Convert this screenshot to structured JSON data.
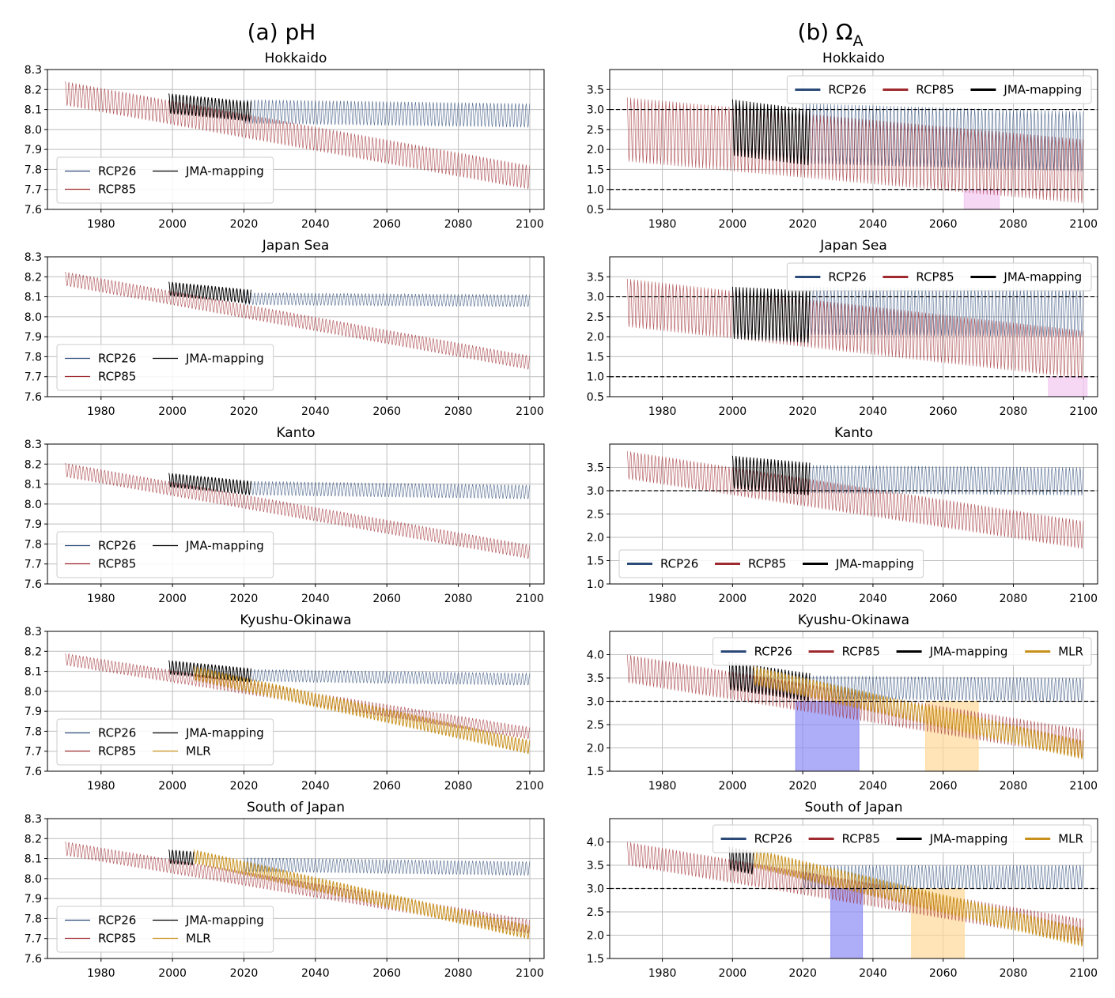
{
  "figure": {
    "col_a_title": "(a) pH",
    "col_b_title": "(b) Ω",
    "col_b_subscript": "A"
  },
  "colors": {
    "RCP26": "#2b4a78",
    "RCP85": "#9e2a2f",
    "JMA-mapping": "#000000",
    "MLR": "#c8901c",
    "pink_span": "#f2c6f0",
    "blue_span": "#8c8cf5",
    "orange_span": "#ffd998",
    "grid": "#bdbdbd"
  },
  "chart_data": [
    {
      "type": "line",
      "panel": "a",
      "region": "Hokkaido",
      "title": "Hokkaido",
      "xlim": [
        1965,
        2104
      ],
      "ylim": [
        7.6,
        8.3
      ],
      "xticks": [
        1980,
        2000,
        2020,
        2040,
        2060,
        2080,
        2100
      ],
      "yticks": [
        7.6,
        7.7,
        7.8,
        7.9,
        8.0,
        8.1,
        8.2,
        8.3
      ],
      "ytick_fmt": 1,
      "legend": {
        "loc": "lower-left",
        "ncol": 2,
        "entries": [
          "RCP26",
          "JMA-mapping",
          "RCP85"
        ]
      },
      "series": [
        {
          "name": "RCP26",
          "x0": 2020,
          "x1": 2100,
          "trend": [
            8.09,
            8.07
          ],
          "amp": 0.06
        },
        {
          "name": "RCP85",
          "x0": 1970,
          "x1": 2100,
          "trend": [
            8.18,
            7.76
          ],
          "amp": 0.06
        },
        {
          "name": "JMA-mapping",
          "x0": 1999,
          "x1": 2022,
          "trend": [
            8.13,
            8.09
          ],
          "amp": 0.05
        }
      ],
      "hlines": [],
      "spans": []
    },
    {
      "type": "line",
      "panel": "b",
      "region": "Hokkaido",
      "title": "Hokkaido",
      "xlim": [
        1965,
        2104
      ],
      "ylim": [
        0.5,
        4.0
      ],
      "xticks": [
        1980,
        2000,
        2020,
        2040,
        2060,
        2080,
        2100
      ],
      "yticks": [
        0.5,
        1.0,
        1.5,
        2.0,
        2.5,
        3.0,
        3.5
      ],
      "ytick_fmt": 1,
      "legend": {
        "loc": "upper-right",
        "ncol": 3,
        "entries": [
          "RCP26",
          "RCP85",
          "JMA-mapping"
        ]
      },
      "series": [
        {
          "name": "RCP26",
          "x0": 2020,
          "x1": 2100,
          "trend": [
            2.4,
            2.2
          ],
          "amp": 0.75
        },
        {
          "name": "RCP85",
          "x0": 1970,
          "x1": 2100,
          "trend": [
            2.5,
            1.45
          ],
          "amp": 0.8
        },
        {
          "name": "JMA-mapping",
          "x0": 2000,
          "x1": 2022,
          "trend": [
            2.55,
            2.3
          ],
          "amp": 0.7
        }
      ],
      "hlines": [
        3.0,
        1.0
      ],
      "spans": [
        {
          "x0": 2066,
          "x1": 2076,
          "y0": 0.5,
          "y1": 1.0,
          "color": "pink_span"
        }
      ]
    },
    {
      "type": "line",
      "panel": "a",
      "region": "Japan Sea",
      "title": "Japan Sea",
      "xlim": [
        1965,
        2104
      ],
      "ylim": [
        7.6,
        8.3
      ],
      "xticks": [
        1980,
        2000,
        2020,
        2040,
        2060,
        2080,
        2100
      ],
      "yticks": [
        7.6,
        7.7,
        7.8,
        7.9,
        8.0,
        8.1,
        8.2,
        8.3
      ],
      "ytick_fmt": 1,
      "legend": {
        "loc": "lower-left",
        "ncol": 2,
        "entries": [
          "RCP26",
          "JMA-mapping",
          "RCP85"
        ]
      },
      "series": [
        {
          "name": "RCP26",
          "x0": 2020,
          "x1": 2100,
          "trend": [
            8.09,
            8.08
          ],
          "amp": 0.03
        },
        {
          "name": "RCP85",
          "x0": 1970,
          "x1": 2100,
          "trend": [
            8.19,
            7.77
          ],
          "amp": 0.035
        },
        {
          "name": "JMA-mapping",
          "x0": 1999,
          "x1": 2022,
          "trend": [
            8.14,
            8.1
          ],
          "amp": 0.035
        }
      ],
      "hlines": [],
      "spans": []
    },
    {
      "type": "line",
      "panel": "b",
      "region": "Japan Sea",
      "title": "Japan Sea",
      "xlim": [
        1965,
        2104
      ],
      "ylim": [
        0.5,
        4.0
      ],
      "xticks": [
        1980,
        2000,
        2020,
        2040,
        2060,
        2080,
        2100
      ],
      "yticks": [
        0.5,
        1.0,
        1.5,
        2.0,
        2.5,
        3.0,
        3.5
      ],
      "ytick_fmt": 1,
      "legend": {
        "loc": "upper-right",
        "ncol": 3,
        "entries": [
          "RCP26",
          "RCP85",
          "JMA-mapping"
        ]
      },
      "series": [
        {
          "name": "RCP26",
          "x0": 2020,
          "x1": 2100,
          "trend": [
            2.65,
            2.6
          ],
          "amp": 0.6
        },
        {
          "name": "RCP85",
          "x0": 1970,
          "x1": 2100,
          "trend": [
            2.85,
            1.55
          ],
          "amp": 0.6
        },
        {
          "name": "JMA-mapping",
          "x0": 2000,
          "x1": 2022,
          "trend": [
            2.6,
            2.5
          ],
          "amp": 0.65
        }
      ],
      "hlines": [
        3.0,
        1.0
      ],
      "spans": [
        {
          "x0": 2090,
          "x1": 2101,
          "y0": 0.5,
          "y1": 1.0,
          "color": "pink_span"
        }
      ]
    },
    {
      "type": "line",
      "panel": "a",
      "region": "Kanto",
      "title": "Kanto",
      "xlim": [
        1965,
        2104
      ],
      "ylim": [
        7.6,
        8.3
      ],
      "xticks": [
        1980,
        2000,
        2020,
        2040,
        2060,
        2080,
        2100
      ],
      "yticks": [
        7.6,
        7.7,
        7.8,
        7.9,
        8.0,
        8.1,
        8.2,
        8.3
      ],
      "ytick_fmt": 1,
      "legend": {
        "loc": "lower-left",
        "ncol": 2,
        "entries": [
          "RCP26",
          "JMA-mapping",
          "RCP85"
        ]
      },
      "series": [
        {
          "name": "RCP26",
          "x0": 2020,
          "x1": 2100,
          "trend": [
            8.08,
            8.06
          ],
          "amp": 0.035
        },
        {
          "name": "RCP85",
          "x0": 1970,
          "x1": 2100,
          "trend": [
            8.17,
            7.76
          ],
          "amp": 0.035
        },
        {
          "name": "JMA-mapping",
          "x0": 1999,
          "x1": 2022,
          "trend": [
            8.12,
            8.08
          ],
          "amp": 0.035
        }
      ],
      "hlines": [],
      "spans": []
    },
    {
      "type": "line",
      "panel": "b",
      "region": "Kanto",
      "title": "Kanto",
      "xlim": [
        1965,
        2104
      ],
      "ylim": [
        1.0,
        4.0
      ],
      "xticks": [
        1980,
        2000,
        2020,
        2040,
        2060,
        2080,
        2100
      ],
      "yticks": [
        1.0,
        1.5,
        2.0,
        2.5,
        3.0,
        3.5
      ],
      "ytick_fmt": 1,
      "legend": {
        "loc": "lower-left",
        "ncol": 3,
        "entries": [
          "RCP26",
          "RCP85",
          "JMA-mapping"
        ]
      },
      "series": [
        {
          "name": "RCP26",
          "x0": 2020,
          "x1": 2100,
          "trend": [
            3.25,
            3.2
          ],
          "amp": 0.3
        },
        {
          "name": "RCP85",
          "x0": 1970,
          "x1": 2100,
          "trend": [
            3.55,
            2.05
          ],
          "amp": 0.3
        },
        {
          "name": "JMA-mapping",
          "x0": 2000,
          "x1": 2022,
          "trend": [
            3.4,
            3.25
          ],
          "amp": 0.35
        }
      ],
      "hlines": [
        3.0
      ],
      "spans": []
    },
    {
      "type": "line",
      "panel": "a",
      "region": "Kyushu-Okinawa",
      "title": "Kyushu-Okinawa",
      "xlim": [
        1965,
        2104
      ],
      "ylim": [
        7.6,
        8.3
      ],
      "xticks": [
        1980,
        2000,
        2020,
        2040,
        2060,
        2080,
        2100
      ],
      "yticks": [
        7.6,
        7.7,
        7.8,
        7.9,
        8.0,
        8.1,
        8.2,
        8.3
      ],
      "ytick_fmt": 1,
      "legend": {
        "loc": "lower-left",
        "ncol": 2,
        "entries": [
          "RCP26",
          "JMA-mapping",
          "RCP85",
          "MLR"
        ]
      },
      "series": [
        {
          "name": "RCP26",
          "x0": 2020,
          "x1": 2100,
          "trend": [
            8.08,
            8.06
          ],
          "amp": 0.03
        },
        {
          "name": "RCP85",
          "x0": 1970,
          "x1": 2100,
          "trend": [
            8.16,
            7.79
          ],
          "amp": 0.03
        },
        {
          "name": "JMA-mapping",
          "x0": 1999,
          "x1": 2022,
          "trend": [
            8.12,
            8.08
          ],
          "amp": 0.035
        },
        {
          "name": "MLR",
          "x0": 2006,
          "x1": 2100,
          "trend": [
            8.09,
            7.72
          ],
          "amp": 0.035
        }
      ],
      "hlines": [],
      "spans": []
    },
    {
      "type": "line",
      "panel": "b",
      "region": "Kyushu-Okinawa",
      "title": "Kyushu-Okinawa",
      "xlim": [
        1965,
        2104
      ],
      "ylim": [
        1.5,
        4.5
      ],
      "xticks": [
        1980,
        2000,
        2020,
        2040,
        2060,
        2080,
        2100
      ],
      "yticks": [
        1.5,
        2.0,
        2.5,
        3.0,
        3.5,
        4.0
      ],
      "ytick_fmt": 1,
      "legend": {
        "loc": "upper-right",
        "ncol": 4,
        "entries": [
          "RCP26",
          "RCP85",
          "JMA-mapping",
          "MLR"
        ]
      },
      "series": [
        {
          "name": "RCP26",
          "x0": 2020,
          "x1": 2100,
          "trend": [
            3.3,
            3.25
          ],
          "amp": 0.25
        },
        {
          "name": "RCP85",
          "x0": 1970,
          "x1": 2100,
          "trend": [
            3.7,
            2.1
          ],
          "amp": 0.3
        },
        {
          "name": "JMA-mapping",
          "x0": 1999,
          "x1": 2022,
          "trend": [
            3.55,
            3.3
          ],
          "amp": 0.3
        },
        {
          "name": "MLR",
          "x0": 2006,
          "x1": 2100,
          "trend": [
            3.55,
            1.95
          ],
          "amp": 0.2
        }
      ],
      "hlines": [
        3.0
      ],
      "spans": [
        {
          "x0": 2018,
          "x1": 2036,
          "y0": 1.5,
          "y1": 3.0,
          "color": "blue_span"
        },
        {
          "x0": 2055,
          "x1": 2070,
          "y0": 1.5,
          "y1": 3.0,
          "color": "orange_span"
        }
      ]
    },
    {
      "type": "line",
      "panel": "a",
      "region": "South of Japan",
      "title": "South of Japan",
      "xlim": [
        1965,
        2104
      ],
      "ylim": [
        7.6,
        8.3
      ],
      "xticks": [
        1980,
        2000,
        2020,
        2040,
        2060,
        2080,
        2100
      ],
      "yticks": [
        7.6,
        7.7,
        7.8,
        7.9,
        8.0,
        8.1,
        8.2,
        8.3
      ],
      "ytick_fmt": 1,
      "legend": {
        "loc": "lower-left",
        "ncol": 2,
        "entries": [
          "RCP26",
          "JMA-mapping",
          "RCP85",
          "MLR"
        ]
      },
      "series": [
        {
          "name": "RCP26",
          "x0": 2020,
          "x1": 2100,
          "trend": [
            8.07,
            8.05
          ],
          "amp": 0.035
        },
        {
          "name": "RCP85",
          "x0": 1970,
          "x1": 2100,
          "trend": [
            8.15,
            7.76
          ],
          "amp": 0.035
        },
        {
          "name": "JMA-mapping",
          "x0": 1999,
          "x1": 2006,
          "trend": [
            8.11,
            8.1
          ],
          "amp": 0.035
        },
        {
          "name": "MLR",
          "x0": 2006,
          "x1": 2100,
          "trend": [
            8.11,
            7.73
          ],
          "amp": 0.035
        }
      ],
      "hlines": [],
      "spans": []
    },
    {
      "type": "line",
      "panel": "b",
      "region": "South of Japan",
      "title": "South of Japan",
      "xlim": [
        1965,
        2104
      ],
      "ylim": [
        1.5,
        4.5
      ],
      "xticks": [
        1980,
        2000,
        2020,
        2040,
        2060,
        2080,
        2100
      ],
      "yticks": [
        1.5,
        2.0,
        2.5,
        3.0,
        3.5,
        4.0
      ],
      "ytick_fmt": 1,
      "legend": {
        "loc": "upper-right",
        "ncol": 4,
        "entries": [
          "RCP26",
          "RCP85",
          "JMA-mapping",
          "MLR"
        ]
      },
      "series": [
        {
          "name": "RCP26",
          "x0": 2020,
          "x1": 2100,
          "trend": [
            3.25,
            3.25
          ],
          "amp": 0.25
        },
        {
          "name": "RCP85",
          "x0": 1970,
          "x1": 2100,
          "trend": [
            3.75,
            2.1
          ],
          "amp": 0.25
        },
        {
          "name": "JMA-mapping",
          "x0": 1999,
          "x1": 2006,
          "trend": [
            3.65,
            3.55
          ],
          "amp": 0.25
        },
        {
          "name": "MLR",
          "x0": 2006,
          "x1": 2100,
          "trend": [
            3.65,
            1.95
          ],
          "amp": 0.2
        }
      ],
      "hlines": [
        3.0
      ],
      "spans": [
        {
          "x0": 2028,
          "x1": 2037,
          "y0": 1.5,
          "y1": 3.0,
          "color": "blue_span"
        },
        {
          "x0": 2051,
          "x1": 2066,
          "y0": 1.5,
          "y1": 3.0,
          "color": "orange_span"
        }
      ]
    }
  ]
}
